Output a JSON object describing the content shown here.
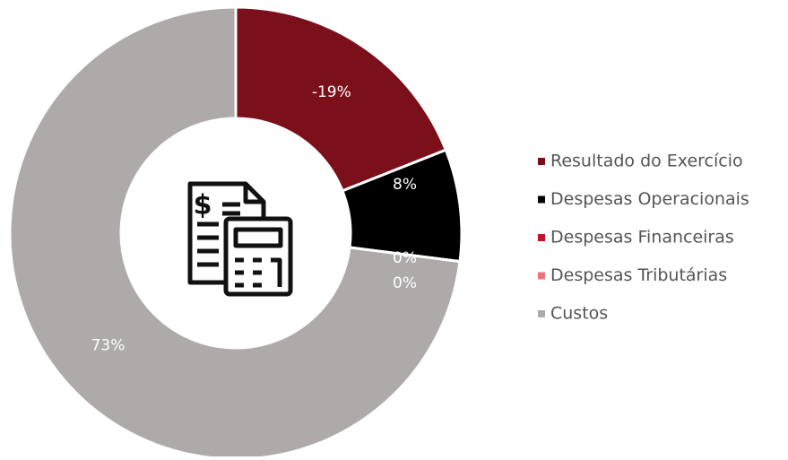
{
  "chart_data": {
    "type": "donut",
    "categories": [
      "Resultado do Exercício",
      "Despesas Operacionais",
      "Despesas Financeiras",
      "Despesas Tributárias",
      "Custos"
    ],
    "values": [
      -19,
      8,
      0,
      0,
      73
    ],
    "value_labels": [
      "-19%",
      "8%",
      "0%",
      "0%",
      "73%"
    ],
    "colors": [
      "#7b0f1a",
      "#000000",
      "#c8102e",
      "#e8777d",
      "#aeaaaa"
    ],
    "legend": "right"
  }
}
